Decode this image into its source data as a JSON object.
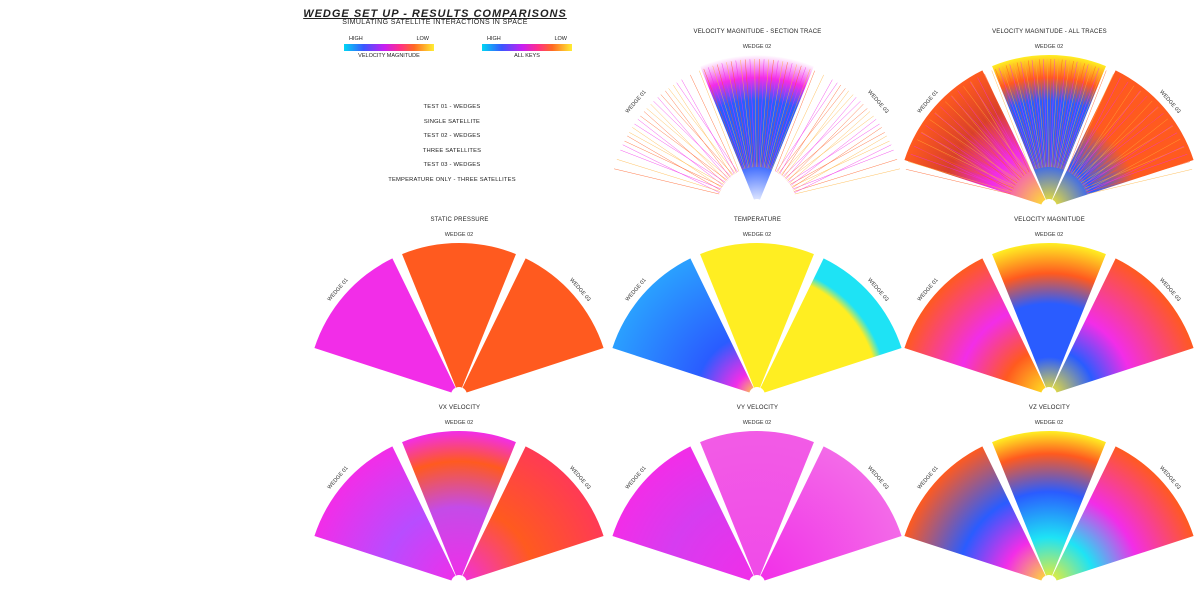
{
  "header": {
    "title": "WEDGE SET UP - RESULTS COMPARISONS",
    "subtitle": "SIMULATING SATELLITE INTERACTIONS IN SPACE"
  },
  "legends": [
    {
      "high": "HIGH",
      "low": "LOW",
      "label": "VELOCITY MAGNITUDE"
    },
    {
      "high": "HIGH",
      "low": "LOW",
      "label": "ALL KEYS"
    }
  ],
  "tests": [
    "TEST 01 - WEDGES",
    "SINGLE SATELLITE",
    "TEST 02 - WEDGES",
    "THREE SATELLITES",
    "TEST 03 - WEDGES",
    "TEMPERATURE ONLY - THREE SATELLITES"
  ],
  "wedge_labels": [
    "WEDGE 01",
    "WEDGE 02",
    "WEDGE 03"
  ],
  "colors": {
    "magenta": "#f22de8",
    "orange": "#ff5a1f",
    "yellow": "#ffee22",
    "blue": "#2a5cff",
    "cyan": "#1ee3f5"
  },
  "panels": [
    {
      "title": "VELOCITY MAGNITUDE - SECTION TRACE",
      "style": "trace"
    },
    {
      "title": "VELOCITY MAGNITUDE - ALL TRACES",
      "style": "alltrace"
    },
    {
      "title": "STATIC PRESSURE",
      "style": "pressure"
    },
    {
      "title": "TEMPERATURE",
      "style": "temperature"
    },
    {
      "title": "VELOCITY MAGNITUDE",
      "style": "velmag"
    },
    {
      "title": "VX VELOCITY",
      "style": "vx"
    },
    {
      "title": "VY VELOCITY",
      "style": "vy"
    },
    {
      "title": "VZ VELOCITY",
      "style": "vz"
    }
  ]
}
